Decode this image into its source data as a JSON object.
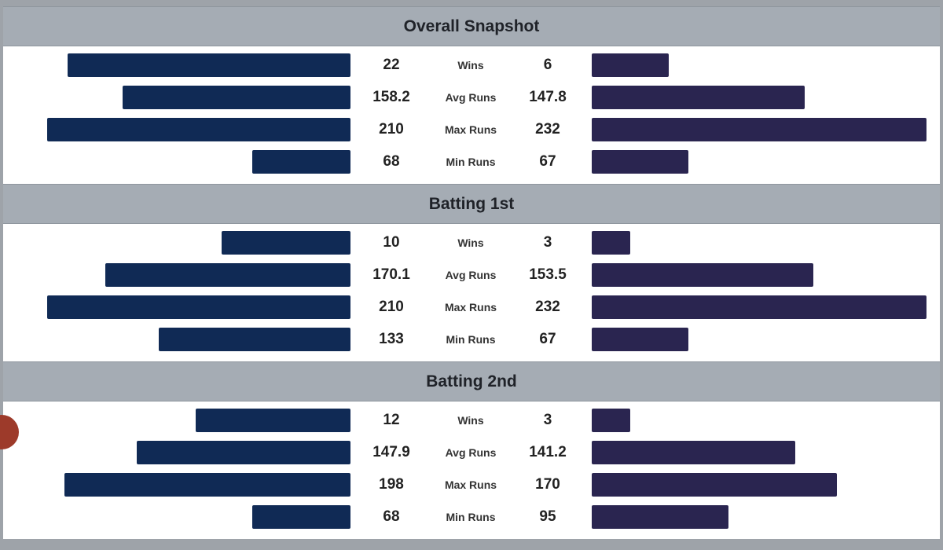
{
  "colors": {
    "left_bar": "#102a55",
    "right_bar": "#2a2550",
    "header_bg": "#a5acb4"
  },
  "chart_data": [
    {
      "type": "bar",
      "orientation": "butterfly-horizontal",
      "title": "Overall Snapshot",
      "categories": [
        "Wins",
        "Avg Runs",
        "Max Runs",
        "Min Runs"
      ],
      "left_labels": [
        "22",
        "158.2",
        "210",
        "68"
      ],
      "right_labels": [
        "6",
        "147.8",
        "232",
        "67"
      ],
      "series": [
        {
          "values": [
            22,
            158.2,
            210,
            68
          ]
        },
        {
          "values": [
            6,
            147.8,
            232,
            67
          ]
        }
      ]
    },
    {
      "type": "bar",
      "orientation": "butterfly-horizontal",
      "title": "Batting 1st",
      "categories": [
        "Wins",
        "Avg Runs",
        "Max Runs",
        "Min Runs"
      ],
      "left_labels": [
        "10",
        "170.1",
        "210",
        "133"
      ],
      "right_labels": [
        "3",
        "153.5",
        "232",
        "67"
      ],
      "series": [
        {
          "values": [
            10,
            170.1,
            210,
            133
          ]
        },
        {
          "values": [
            3,
            153.5,
            232,
            67
          ]
        }
      ]
    },
    {
      "type": "bar",
      "orientation": "butterfly-horizontal",
      "title": "Batting 2nd",
      "categories": [
        "Wins",
        "Avg Runs",
        "Max Runs",
        "Min Runs"
      ],
      "left_labels": [
        "12",
        "147.9",
        "198",
        "68"
      ],
      "right_labels": [
        "3",
        "141.2",
        "170",
        "95"
      ],
      "series": [
        {
          "values": [
            12,
            147.9,
            198,
            68
          ]
        },
        {
          "values": [
            3,
            141.2,
            170,
            95
          ]
        }
      ]
    }
  ]
}
